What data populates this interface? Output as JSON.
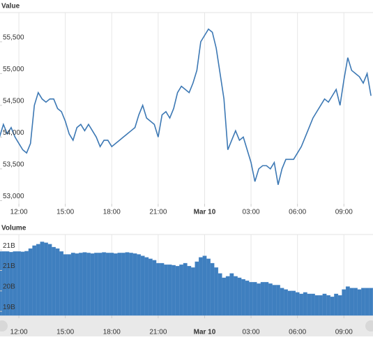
{
  "chart_data": [
    {
      "type": "line",
      "title": "Value",
      "color": "#3c78b4",
      "x": [
        -1.25,
        -1,
        -0.75,
        -0.5,
        -0.25,
        0,
        0.25,
        0.5,
        0.75,
        1,
        1.25,
        1.5,
        1.75,
        2,
        2.25,
        2.5,
        2.75,
        3,
        3.25,
        3.5,
        3.75,
        4,
        4.25,
        4.5,
        4.75,
        5,
        5.25,
        5.5,
        5.75,
        6,
        6.25,
        6.5,
        6.75,
        7,
        7.25,
        7.5,
        7.75,
        8,
        8.25,
        8.5,
        8.75,
        9,
        9.25,
        9.5,
        9.75,
        10,
        10.25,
        10.5,
        10.75,
        11,
        11.25,
        11.5,
        11.75,
        12,
        12.25,
        12.5,
        12.75,
        13,
        13.25,
        13.5,
        13.75,
        14,
        14.25,
        14.5,
        14.75,
        15,
        15.25,
        15.5,
        15.75,
        16,
        16.25,
        16.5,
        16.75,
        17,
        17.25,
        17.5,
        17.75,
        18,
        18.25,
        18.5,
        18.75,
        19,
        19.25,
        19.5,
        19.75,
        20,
        20.25,
        20.5,
        20.75,
        21,
        21.25,
        21.5,
        21.75,
        22,
        22.25,
        22.5,
        22.75
      ],
      "values": [
        54000,
        54200,
        54050,
        54150,
        54000,
        53900,
        53800,
        53750,
        53900,
        54500,
        54700,
        54600,
        54550,
        54600,
        54600,
        54450,
        54400,
        54250,
        54050,
        53950,
        54150,
        54200,
        54100,
        54200,
        54100,
        54000,
        53850,
        53950,
        53950,
        53850,
        53900,
        53950,
        54000,
        54050,
        54100,
        54150,
        54350,
        54500,
        54300,
        54250,
        54200,
        54000,
        54350,
        54400,
        54300,
        54450,
        54700,
        54800,
        54750,
        54700,
        54850,
        55050,
        55500,
        55600,
        55700,
        55650,
        55400,
        55000,
        54600,
        53800,
        53950,
        54100,
        53950,
        54000,
        53800,
        53600,
        53300,
        53500,
        53550,
        53550,
        53500,
        53600,
        53250,
        53500,
        53650,
        53650,
        53650,
        53750,
        53850,
        54000,
        54150,
        54300,
        54400,
        54500,
        54600,
        54550,
        54650,
        54750,
        54500,
        54900,
        55250,
        55050,
        55000,
        54950,
        54850,
        55000,
        54650
      ],
      "xlim": [
        -1.22,
        22.88
      ],
      "xticks": [
        {
          "value": 0,
          "label": "12:00"
        },
        {
          "value": 3,
          "label": "15:00"
        },
        {
          "value": 6,
          "label": "18:00"
        },
        {
          "value": 9,
          "label": "21:00"
        },
        {
          "value": 12,
          "label": "Mar 10"
        },
        {
          "value": 15,
          "label": "03:00"
        },
        {
          "value": 18,
          "label": "06:00"
        },
        {
          "value": 21,
          "label": "09:00"
        }
      ],
      "ylim": [
        52950,
        55960
      ],
      "yticks": [
        {
          "value": 53000,
          "label": "53,000"
        },
        {
          "value": 53500,
          "label": "53,500"
        },
        {
          "value": 54000,
          "label": "54,000"
        },
        {
          "value": 54500,
          "label": "54,500"
        },
        {
          "value": 55000,
          "label": "55,000"
        },
        {
          "value": 55500,
          "label": "55,500"
        }
      ]
    },
    {
      "type": "bar",
      "title": "Volume",
      "color": "#3f7fbf",
      "x": [
        -1.25,
        -1,
        -0.75,
        -0.5,
        -0.25,
        0,
        0.25,
        0.5,
        0.75,
        1,
        1.25,
        1.5,
        1.75,
        2,
        2.25,
        2.5,
        2.75,
        3,
        3.25,
        3.5,
        3.75,
        4,
        4.25,
        4.5,
        4.75,
        5,
        5.25,
        5.5,
        5.75,
        6,
        6.25,
        6.5,
        6.75,
        7,
        7.25,
        7.5,
        7.75,
        8,
        8.25,
        8.5,
        8.75,
        9,
        9.25,
        9.5,
        9.75,
        10,
        10.25,
        10.5,
        10.75,
        11,
        11.25,
        11.5,
        11.75,
        12,
        12.25,
        12.5,
        12.75,
        13,
        13.25,
        13.5,
        13.75,
        14,
        14.25,
        14.5,
        14.75,
        15,
        15.25,
        15.5,
        15.75,
        16,
        16.25,
        16.5,
        16.75,
        17,
        17.25,
        17.5,
        17.75,
        18,
        18.25,
        18.5,
        18.75,
        19,
        19.25,
        19.5,
        19.75,
        20,
        20.25,
        20.5,
        20.75,
        21,
        21.25,
        21.5,
        21.75,
        22,
        22.25,
        22.5,
        22.75
      ],
      "values": [
        21.35,
        21.35,
        21.35,
        21.33,
        21.35,
        21.35,
        21.34,
        21.36,
        21.45,
        21.55,
        21.6,
        21.68,
        21.65,
        21.6,
        21.5,
        21.45,
        21.35,
        21.25,
        21.25,
        21.3,
        21.28,
        21.3,
        21.32,
        21.3,
        21.28,
        21.3,
        21.3,
        21.32,
        21.3,
        21.3,
        21.28,
        21.3,
        21.3,
        21.32,
        21.3,
        21.28,
        21.25,
        21.2,
        21.15,
        21.1,
        21.05,
        20.95,
        20.95,
        20.9,
        20.9,
        20.88,
        20.85,
        20.9,
        20.95,
        20.85,
        20.8,
        21.0,
        21.15,
        21.2,
        21.1,
        20.95,
        20.8,
        20.6,
        20.45,
        20.5,
        20.6,
        20.5,
        20.45,
        20.4,
        20.35,
        20.3,
        20.3,
        20.25,
        20.3,
        20.3,
        20.25,
        20.2,
        20.2,
        20.1,
        20.05,
        20.0,
        20.0,
        19.95,
        19.9,
        19.95,
        19.9,
        19.9,
        19.85,
        19.85,
        19.9,
        19.85,
        19.8,
        19.9,
        19.85,
        20.05,
        20.15,
        20.1,
        20.1,
        20.05,
        20.1,
        20.1,
        20.1
      ],
      "xlim": [
        -1.22,
        22.88
      ],
      "xticks": [
        {
          "value": 0,
          "label": "12:00"
        },
        {
          "value": 3,
          "label": "15:00"
        },
        {
          "value": 6,
          "label": "18:00"
        },
        {
          "value": 9,
          "label": "21:00"
        },
        {
          "value": 12,
          "label": "Mar 10"
        },
        {
          "value": 15,
          "label": "03:00"
        },
        {
          "value": 18,
          "label": "06:00"
        },
        {
          "value": 21,
          "label": "09:00"
        }
      ],
      "ylim": [
        19.16,
        21.93
      ],
      "yticks": [
        {
          "value": 19.3,
          "label": "19B"
        },
        {
          "value": 20.0,
          "label": "20B"
        },
        {
          "value": 20.7,
          "label": "21B"
        },
        {
          "value": 21.4,
          "label": "21B"
        }
      ]
    }
  ]
}
